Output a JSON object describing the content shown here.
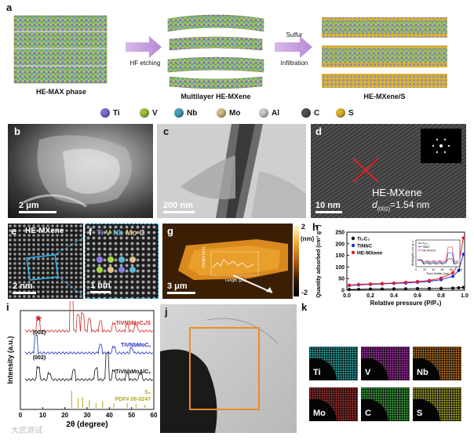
{
  "panel_a": {
    "letter": "a",
    "stages": [
      "HE-MAX phase",
      "Multilayer HE-MXene",
      "HE-MXene/S"
    ],
    "arrow1": "HF etching",
    "arrow2_line1": "Sulfur",
    "arrow2_line2": "Infiltration",
    "legend": [
      {
        "label": "Ti",
        "color": "#7a6fd0"
      },
      {
        "label": "V",
        "color": "#9bc23c"
      },
      {
        "label": "Nb",
        "color": "#4aa0b8"
      },
      {
        "label": "Mo",
        "color": "#d9b98a"
      },
      {
        "label": "Al",
        "color": "#c9c9c9"
      },
      {
        "label": "C",
        "color": "#505050"
      },
      {
        "label": "S",
        "color": "#d8b42c"
      }
    ]
  },
  "panel_b": {
    "letter": "b",
    "scale": "2 μm"
  },
  "panel_c": {
    "letter": "c",
    "scale": "200 nm"
  },
  "panel_d": {
    "letter": "d",
    "scale": "10 nm",
    "label": "HE-MXene",
    "d_label": "d",
    "d_sub": "(002)",
    "d_value": "=1.54 nm"
  },
  "panel_e": {
    "letter": "e",
    "title": "HE-MXene",
    "scale": "2 nm"
  },
  "panel_f": {
    "letter": "f",
    "scale": "1 nm",
    "elements": [
      "Ti",
      "V",
      "Nb",
      "Mo",
      "C"
    ],
    "element_colors": [
      "#8a7fe6",
      "#a6d84a",
      "#5ab8d0",
      "#e0c08e",
      "#cfcfcf"
    ]
  },
  "panel_g": {
    "letter": "g",
    "scale": "3 μm",
    "colorbar_unit": "(nm)",
    "colorbar_max": "2",
    "colorbar_min": "-2",
    "inset_ylabel": "Height (nm)",
    "inset_xlabel": "Length (μm)"
  },
  "panel_h": {
    "letter": "h"
  },
  "panel_i": {
    "letter": "i"
  },
  "panel_j": {
    "letter": "j"
  },
  "panel_k": {
    "letter": "k",
    "maps": [
      {
        "label": "Ti",
        "color": "#2bb3b0"
      },
      {
        "label": "V",
        "color": "#b030b0"
      },
      {
        "label": "Nb",
        "color": "#c87a20"
      },
      {
        "label": "Mo",
        "color": "#b03030"
      },
      {
        "label": "C",
        "color": "#40b040"
      },
      {
        "label": "S",
        "color": "#b0b030"
      }
    ]
  },
  "watermark": "大武测试",
  "chart_data": [
    {
      "type": "scatter",
      "panel": "h",
      "ylabel": "Quantity adsorbed (cm³ g⁻¹)",
      "xlabel": "Relative pressure (P/P₀)",
      "xlim": [
        0.0,
        1.0
      ],
      "ylim": [
        0,
        250
      ],
      "x_ticks": [
        "0.0",
        "0.2",
        "0.4",
        "0.6",
        "0.8",
        "1.0"
      ],
      "y_ticks": [
        "0",
        "50",
        "100",
        "150",
        "200",
        "250"
      ],
      "series": [
        {
          "name": "Ti₃C₂",
          "color": "#111111",
          "x": [
            0.02,
            0.1,
            0.2,
            0.3,
            0.4,
            0.5,
            0.6,
            0.7,
            0.8,
            0.9,
            0.95,
            0.99
          ],
          "values": [
            3,
            4,
            5,
            5,
            6,
            6,
            7,
            7,
            8,
            9,
            10,
            12
          ]
        },
        {
          "name": "TiNbC",
          "color": "#1a2fd6",
          "x": [
            0.02,
            0.1,
            0.2,
            0.3,
            0.4,
            0.5,
            0.6,
            0.7,
            0.8,
            0.9,
            0.95,
            0.99
          ],
          "values": [
            20,
            23,
            25,
            27,
            29,
            31,
            34,
            38,
            45,
            60,
            85,
            155
          ]
        },
        {
          "name": "HE-MXene",
          "color": "#e0202a",
          "x": [
            0.02,
            0.1,
            0.2,
            0.3,
            0.4,
            0.5,
            0.6,
            0.7,
            0.8,
            0.9,
            0.95,
            0.99
          ],
          "values": [
            22,
            25,
            27,
            29,
            31,
            34,
            37,
            42,
            52,
            75,
            115,
            225
          ]
        }
      ],
      "inset": {
        "ylabel": "dV/dlog(W) (cm³ g⁻¹)",
        "xlabel": "Pore Width (nm)",
        "x_ticks": [
          "0",
          "20",
          "40",
          "60",
          "80",
          "100"
        ],
        "legend": [
          "Ti₃C₂",
          "TiNbC",
          "HE-MXene"
        ]
      }
    },
    {
      "type": "line",
      "panel": "i",
      "ylabel": "Intensity (a.u.)",
      "xlabel": "2θ (degree)",
      "xlim": [
        0,
        60
      ],
      "x_ticks": [
        "0",
        "10",
        "20",
        "30",
        "40",
        "50",
        "60"
      ],
      "series": [
        {
          "name": "TiVNbMoCₓ/S",
          "color": "#d02a2a"
        },
        {
          "name": "TiVNbMoCₓ",
          "color": "#1f2fbf"
        },
        {
          "name": "TiVNbMoAlCₓ",
          "color": "#111111"
        },
        {
          "name": "S₈",
          "color": "#b5a61a",
          "subtitle": "PDF# 08-0247"
        }
      ],
      "annotations": [
        "(002)",
        "(002)"
      ]
    }
  ]
}
